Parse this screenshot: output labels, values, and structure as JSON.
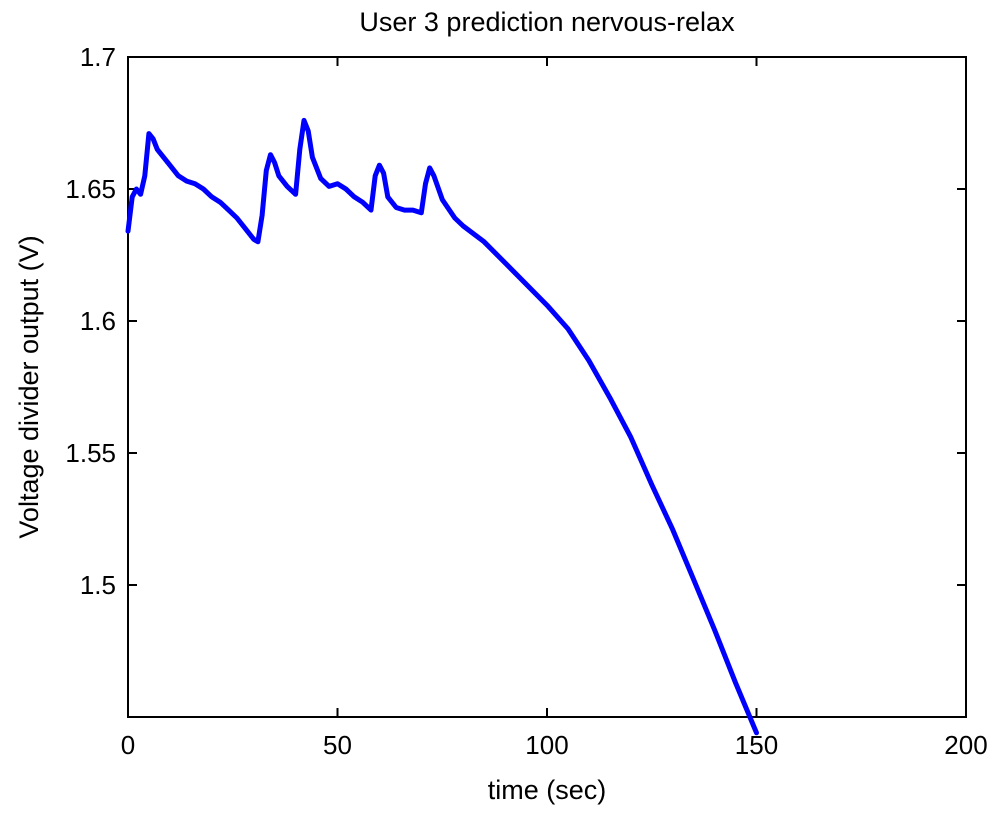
{
  "chart_data": {
    "type": "line",
    "title": "User 3 prediction nervous-relax",
    "xlabel": "time (sec)",
    "ylabel": "Voltage divider output (V)",
    "xlim": [
      0,
      200
    ],
    "ylim": [
      1.45,
      1.7
    ],
    "x_ticks": [
      0,
      50,
      100,
      150,
      200
    ],
    "x_tick_labels": [
      "0",
      "50",
      "100",
      "150",
      "200"
    ],
    "y_ticks": [
      1.5,
      1.55,
      1.6,
      1.65,
      1.7
    ],
    "y_tick_labels": [
      "1.5",
      "1.55",
      "1.6",
      "1.65",
      "1.7"
    ],
    "grid": false,
    "legend": "none",
    "series": [
      {
        "color": "#0000ff",
        "points": [
          [
            0,
            1.634
          ],
          [
            1,
            1.647
          ],
          [
            2,
            1.65
          ],
          [
            3,
            1.648
          ],
          [
            4,
            1.655
          ],
          [
            5,
            1.671
          ],
          [
            6,
            1.669
          ],
          [
            7,
            1.665
          ],
          [
            8,
            1.663
          ],
          [
            10,
            1.659
          ],
          [
            12,
            1.655
          ],
          [
            14,
            1.653
          ],
          [
            16,
            1.652
          ],
          [
            18,
            1.65
          ],
          [
            20,
            1.647
          ],
          [
            22,
            1.645
          ],
          [
            24,
            1.642
          ],
          [
            26,
            1.639
          ],
          [
            28,
            1.635
          ],
          [
            30,
            1.631
          ],
          [
            31,
            1.63
          ],
          [
            32,
            1.64
          ],
          [
            33,
            1.657
          ],
          [
            34,
            1.663
          ],
          [
            35,
            1.66
          ],
          [
            36,
            1.655
          ],
          [
            38,
            1.651
          ],
          [
            40,
            1.648
          ],
          [
            41,
            1.665
          ],
          [
            42,
            1.676
          ],
          [
            43,
            1.672
          ],
          [
            44,
            1.662
          ],
          [
            46,
            1.654
          ],
          [
            48,
            1.651
          ],
          [
            50,
            1.652
          ],
          [
            52,
            1.65
          ],
          [
            54,
            1.647
          ],
          [
            56,
            1.645
          ],
          [
            58,
            1.642
          ],
          [
            59,
            1.655
          ],
          [
            60,
            1.659
          ],
          [
            61,
            1.656
          ],
          [
            62,
            1.647
          ],
          [
            64,
            1.643
          ],
          [
            66,
            1.642
          ],
          [
            68,
            1.642
          ],
          [
            70,
            1.641
          ],
          [
            71,
            1.652
          ],
          [
            72,
            1.658
          ],
          [
            73,
            1.655
          ],
          [
            75,
            1.646
          ],
          [
            78,
            1.639
          ],
          [
            80,
            1.636
          ],
          [
            85,
            1.63
          ],
          [
            90,
            1.622
          ],
          [
            95,
            1.614
          ],
          [
            100,
            1.606
          ],
          [
            105,
            1.597
          ],
          [
            110,
            1.585
          ],
          [
            115,
            1.571
          ],
          [
            120,
            1.556
          ],
          [
            125,
            1.538
          ],
          [
            130,
            1.521
          ],
          [
            135,
            1.502
          ],
          [
            140,
            1.483
          ],
          [
            145,
            1.463
          ],
          [
            150,
            1.444
          ]
        ]
      }
    ]
  }
}
